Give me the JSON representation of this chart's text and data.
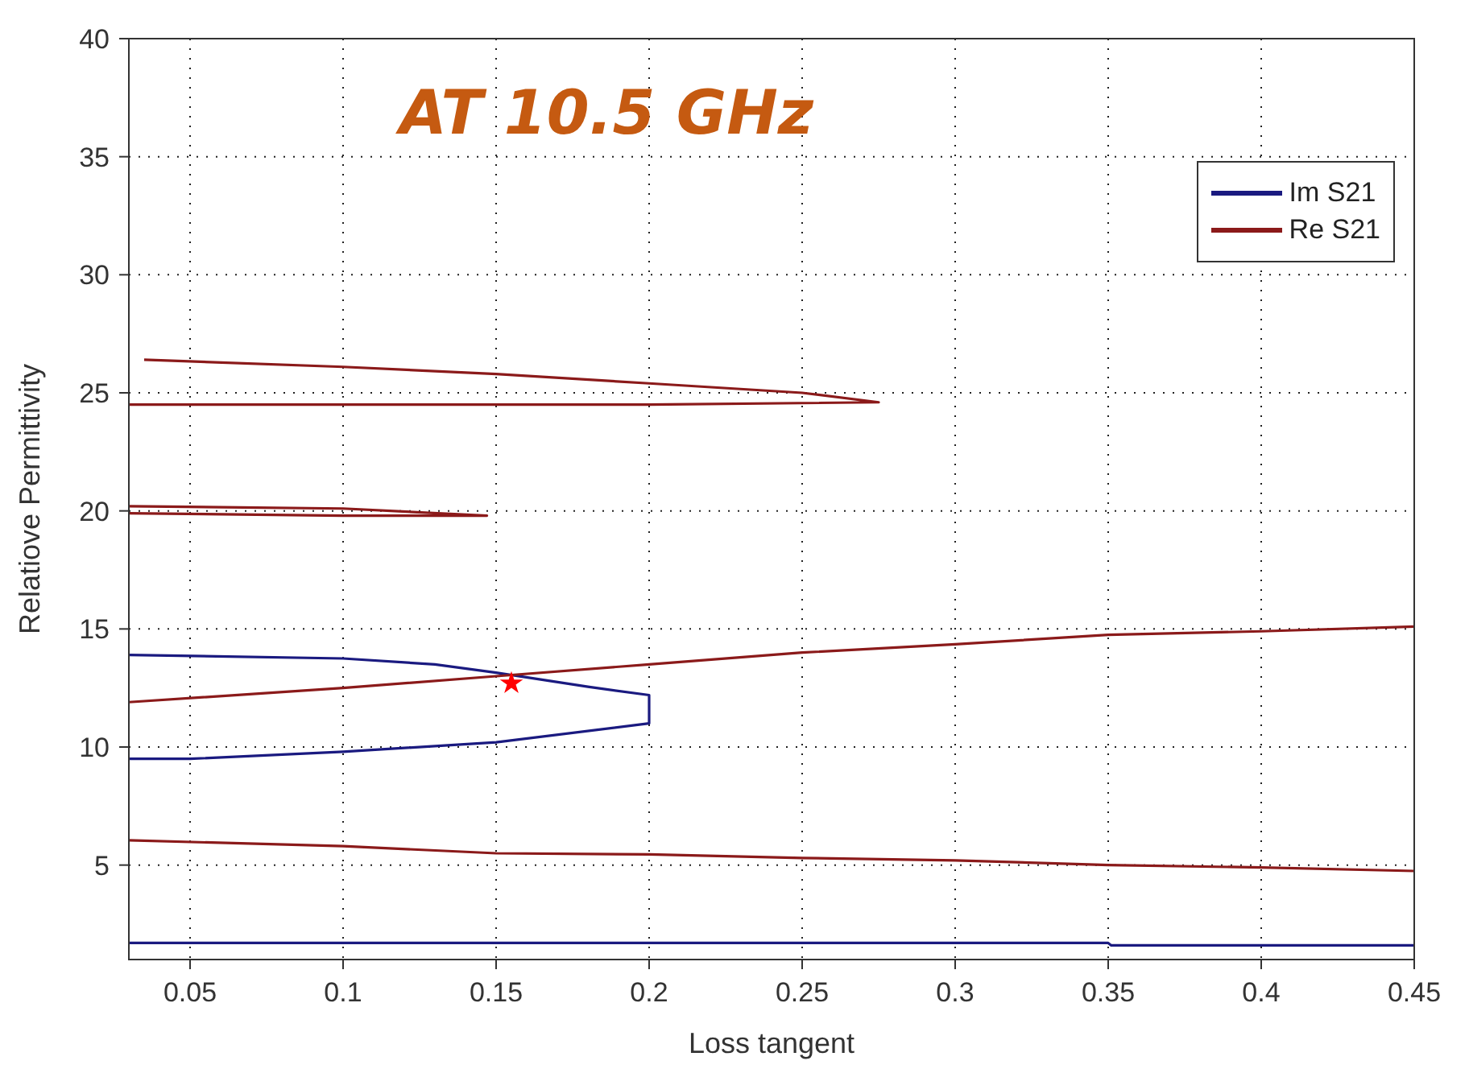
{
  "chart_data": {
    "type": "line",
    "title": "AT 10.5 GHz",
    "xlabel": "Loss tangent",
    "ylabel": "Relatiove Permittivity",
    "xlim": [
      0.03,
      0.45
    ],
    "xticks": [
      0.05,
      0.1,
      0.15,
      0.2,
      0.25,
      0.3,
      0.35,
      0.4,
      0.45
    ],
    "ylim": [
      1,
      40
    ],
    "yticks": [
      5,
      10,
      15,
      20,
      25,
      30,
      35,
      40
    ],
    "grid": true,
    "legend": "top right",
    "line_style": "solid",
    "marker": "none",
    "series": [
      {
        "name": "Im S21",
        "color": "#1a1a80",
        "x": [
          0.03,
          0.1,
          0.13,
          0.15,
          0.18,
          0.2,
          0.2,
          0.15,
          0.1,
          0.05,
          0.03
        ],
        "values": [
          13.9,
          13.75,
          13.5,
          13.15,
          12.55,
          12.2,
          11.0,
          10.2,
          9.8,
          9.5,
          9.5
        ]
      },
      {
        "name": "Re S21",
        "color": "#8b1a1a",
        "x": [
          0.03,
          0.1,
          0.15,
          0.2,
          0.25,
          0.3,
          0.35,
          0.4,
          0.45
        ],
        "values": [
          11.9,
          12.5,
          13.0,
          13.5,
          14.0,
          14.35,
          14.75,
          14.9,
          15.1
        ]
      },
      {
        "color": "#8b1a1a",
        "x": [
          0.035,
          0.1,
          0.15,
          0.2,
          0.25,
          0.275,
          0.2,
          0.1,
          0.03
        ],
        "values": [
          26.4,
          26.1,
          25.8,
          25.4,
          25.0,
          24.6,
          24.5,
          24.5,
          24.5
        ]
      },
      {
        "color": "#8b1a1a",
        "x": [
          0.03,
          0.1,
          0.147,
          0.1,
          0.03
        ],
        "values": [
          20.2,
          20.1,
          19.8,
          19.8,
          19.9
        ]
      },
      {
        "color": "#8b1a1a",
        "x": [
          0.03,
          0.1,
          0.15,
          0.2,
          0.25,
          0.3,
          0.35,
          0.4,
          0.45
        ],
        "values": [
          6.05,
          5.8,
          5.5,
          5.45,
          5.3,
          5.2,
          5.0,
          4.9,
          4.75
        ]
      },
      {
        "color": "#1a1a80",
        "x": [
          0.03,
          0.2,
          0.35,
          0.351,
          0.45
        ],
        "values": [
          1.7,
          1.7,
          1.7,
          1.6,
          1.6
        ]
      },
      {
        "type": "scatter",
        "color": "#ff0000",
        "marker": "star",
        "x": [
          0.155
        ],
        "values": [
          12.7
        ]
      }
    ]
  }
}
